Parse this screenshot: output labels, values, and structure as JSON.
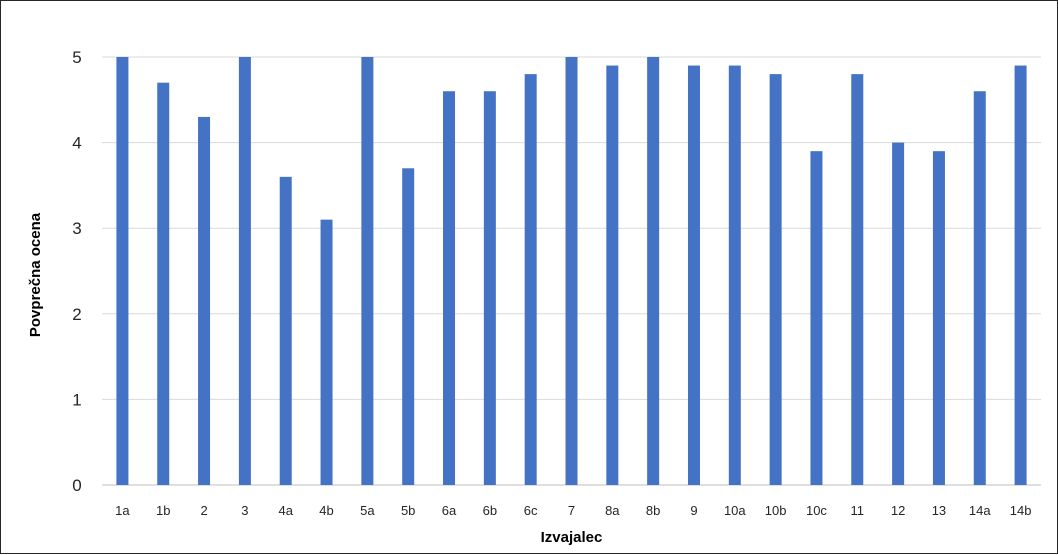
{
  "chart_data": {
    "type": "bar",
    "title": "",
    "xlabel": "Izvajalec",
    "ylabel": "Povprečna ocena",
    "ylim": [
      0,
      5
    ],
    "yticks": [
      "0",
      "1",
      "2",
      "3",
      "4",
      "5"
    ],
    "grid": true,
    "legend": "none",
    "bar_color": "#4472c4",
    "categories": [
      "1a",
      "1b",
      "2",
      "3",
      "4a",
      "4b",
      "5a",
      "5b",
      "6a",
      "6b",
      "6c",
      "7",
      "8a",
      "8b",
      "9",
      "10a",
      "10b",
      "10c",
      "11",
      "12",
      "13",
      "14a",
      "14b"
    ],
    "values": [
      5.0,
      4.7,
      4.3,
      5.0,
      3.6,
      3.1,
      5.0,
      3.7,
      4.6,
      4.6,
      4.8,
      5.0,
      4.9,
      5.0,
      4.9,
      4.9,
      4.8,
      3.9,
      4.8,
      4.0,
      3.9,
      4.6,
      4.9
    ]
  }
}
